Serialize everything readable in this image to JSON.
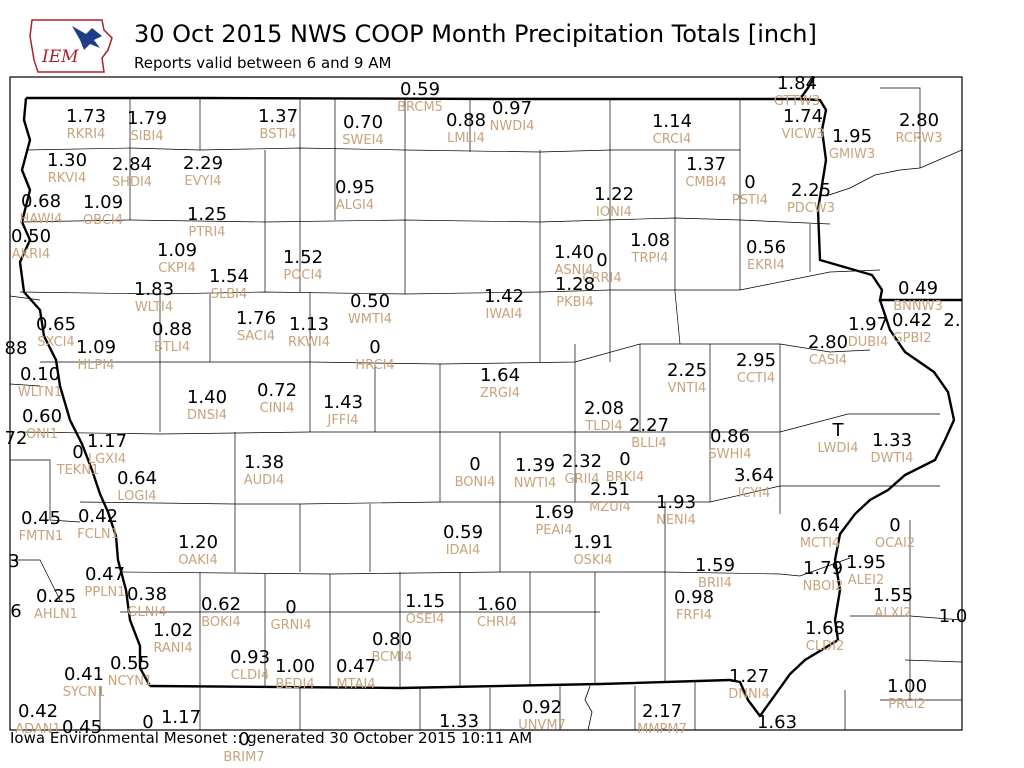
{
  "header": {
    "title": "30 Oct 2015 NWS COOP Month Precipitation Totals [inch]",
    "subtitle": "Reports valid between 6 and 9 AM",
    "logo_text": "IEM"
  },
  "footer": {
    "text": "Iowa Environmental Mesonet :: generated 30 October 2015 10:11 AM"
  },
  "colors": {
    "value": "#000000",
    "station_id": "#c8a37c",
    "logo_red": "#a8222a",
    "logo_blue": "#1f3c8a"
  },
  "stations": [
    {
      "v": "0.59",
      "id": "BRCM5"
    },
    {
      "v": "1.84",
      "id": "GTTW3"
    },
    {
      "v": "1.73",
      "id": "RKRI4"
    },
    {
      "v": "1.79",
      "id": "SIBI4"
    },
    {
      "v": "1.37",
      "id": "BSTI4"
    },
    {
      "v": "0.70",
      "id": "SWEI4"
    },
    {
      "v": "0.88",
      "id": "LMLI4"
    },
    {
      "v": "0.97",
      "id": "NWDI4"
    },
    {
      "v": "1.14",
      "id": "CRCI4"
    },
    {
      "v": "1.74",
      "id": "VICW3"
    },
    {
      "v": "1.95",
      "id": "GMIW3"
    },
    {
      "v": "2.80",
      "id": "RCRW3"
    },
    {
      "v": "1.30",
      "id": "RKVI4"
    },
    {
      "v": "2.84",
      "id": "SHDI4"
    },
    {
      "v": "2.29",
      "id": "EVYI4"
    },
    {
      "v": "1.37",
      "id": "CMBI4"
    },
    {
      "v": "0",
      "id": "PSTI4"
    },
    {
      "v": "2.25",
      "id": "PDCW3"
    },
    {
      "v": "0.68",
      "id": "HAWI4"
    },
    {
      "v": "1.09",
      "id": "OBCI4"
    },
    {
      "v": "0.95",
      "id": "ALGI4"
    },
    {
      "v": "1.22",
      "id": "IONI4"
    },
    {
      "v": "1.25",
      "id": "PTRI4"
    },
    {
      "v": "0.50",
      "id": "AKRI4"
    },
    {
      "v": "1.09",
      "id": "CKPI4"
    },
    {
      "v": "1.52",
      "id": "POCI4"
    },
    {
      "v": "1.40",
      "id": "ASNI4"
    },
    {
      "v": "0",
      "id": "CRRI4"
    },
    {
      "v": "1.08",
      "id": "TRPI4"
    },
    {
      "v": "0.56",
      "id": "EKRI4"
    },
    {
      "v": "1.54",
      "id": "SLBI4"
    },
    {
      "v": "1.83",
      "id": "WLTI4"
    },
    {
      "v": "1.42",
      "id": "IWAI4"
    },
    {
      "v": "1.28",
      "id": "PKBI4"
    },
    {
      "v": "0.50",
      "id": "WMTI4"
    },
    {
      "v": "0.49",
      "id": "BNNW3"
    },
    {
      "v": "0.65",
      "id": "SXCI4"
    },
    {
      "v": "0.88",
      "id": "BTLI4"
    },
    {
      "v": "1.76",
      "id": "SACI4"
    },
    {
      "v": "1.13",
      "id": "RKWI4"
    },
    {
      "v": "1.97",
      "id": "DUBI4"
    },
    {
      "v": "0.42",
      "id": "GPBI2"
    },
    {
      "v": "2.",
      "id": ""
    },
    {
      "v": "88",
      "id": ""
    },
    {
      "v": "1.09",
      "id": "HLPI4"
    },
    {
      "v": "0",
      "id": "HRCI4"
    },
    {
      "v": "2.80",
      "id": "CASI4"
    },
    {
      "v": "0.10",
      "id": "WLTN1"
    },
    {
      "v": "2.25",
      "id": "VNTI4"
    },
    {
      "v": "2.95",
      "id": "CCTI4"
    },
    {
      "v": "1.64",
      "id": "ZRGI4"
    },
    {
      "v": "1.40",
      "id": "DNSI4"
    },
    {
      "v": "0.72",
      "id": "CINI4"
    },
    {
      "v": "1.43",
      "id": "JFFI4"
    },
    {
      "v": "0.60",
      "id": "ONI1"
    },
    {
      "v": "2.08",
      "id": "TLDI4"
    },
    {
      "v": "2.27",
      "id": "BLLI4"
    },
    {
      "v": "72",
      "id": ""
    },
    {
      "v": "1.17",
      "id": "LGXI4"
    },
    {
      "v": "0.86",
      "id": "SWHI4"
    },
    {
      "v": "T",
      "id": "LWDI4"
    },
    {
      "v": "1.33",
      "id": "DWTI4"
    },
    {
      "v": "0",
      "id": "TEKN1"
    },
    {
      "v": "1.38",
      "id": "AUDI4"
    },
    {
      "v": "0",
      "id": "BONI4"
    },
    {
      "v": "1.39",
      "id": "NWTI4"
    },
    {
      "v": "2.32",
      "id": "GRII4"
    },
    {
      "v": "0",
      "id": "BRKI4"
    },
    {
      "v": "0.64",
      "id": "LOGI4"
    },
    {
      "v": "3.64",
      "id": "ICYI4"
    },
    {
      "v": "2.51",
      "id": "MZUI4"
    },
    {
      "v": "1.93",
      "id": "NENI4"
    },
    {
      "v": "0.45",
      "id": "FMTN1"
    },
    {
      "v": "0.42",
      "id": "FCLN1"
    },
    {
      "v": "1.69",
      "id": "PEAI4"
    },
    {
      "v": "0.64",
      "id": "MCTI4"
    },
    {
      "v": "0",
      "id": "OCAI2"
    },
    {
      "v": "1.20",
      "id": "OAKI4"
    },
    {
      "v": "0.59",
      "id": "IDAI4"
    },
    {
      "v": "1.91",
      "id": "OSKI4"
    },
    {
      "v": "3",
      "id": ""
    },
    {
      "v": "1.59",
      "id": "BRII4"
    },
    {
      "v": "1.79",
      "id": "NBOI2"
    },
    {
      "v": "1.95",
      "id": "ALEI2"
    },
    {
      "v": "0.47",
      "id": "PPLN1"
    },
    {
      "v": "0.25",
      "id": "AHLN1"
    },
    {
      "v": "0.38",
      "id": "GLNI4"
    },
    {
      "v": "0.62",
      "id": "BOKI4"
    },
    {
      "v": "0",
      "id": "GRNI4"
    },
    {
      "v": "1.15",
      "id": "OSEI4"
    },
    {
      "v": "1.60",
      "id": "CHRI4"
    },
    {
      "v": "0.98",
      "id": "FRFI4"
    },
    {
      "v": "1.55",
      "id": "ALXI2"
    },
    {
      "v": "6",
      "id": ""
    },
    {
      "v": "1.0",
      "id": ""
    },
    {
      "v": "1.02",
      "id": "RANI4"
    },
    {
      "v": "1.68",
      "id": "CLDI2"
    },
    {
      "v": "0.80",
      "id": "BCMI4"
    },
    {
      "v": "0.93",
      "id": "CLDI4"
    },
    {
      "v": "1.00",
      "id": "BEDI4"
    },
    {
      "v": "0.47",
      "id": "MTAI4"
    },
    {
      "v": "0.41",
      "id": "SYCN1"
    },
    {
      "v": "0.55",
      "id": "NCYN1"
    },
    {
      "v": "1.27",
      "id": "DNNI4"
    },
    {
      "v": "1.00",
      "id": "PRCI2"
    },
    {
      "v": "0.42",
      "id": "ADAN1"
    },
    {
      "v": "0.45",
      "id": ""
    },
    {
      "v": "0",
      "id": ""
    },
    {
      "v": "1.17",
      "id": ""
    },
    {
      "v": "0",
      "id": "BRIM7"
    },
    {
      "v": "1.33",
      "id": ""
    },
    {
      "v": "0.92",
      "id": "UNVM7"
    },
    {
      "v": "2.17",
      "id": "MMPM7"
    },
    {
      "v": "1.63",
      "id": ""
    }
  ]
}
